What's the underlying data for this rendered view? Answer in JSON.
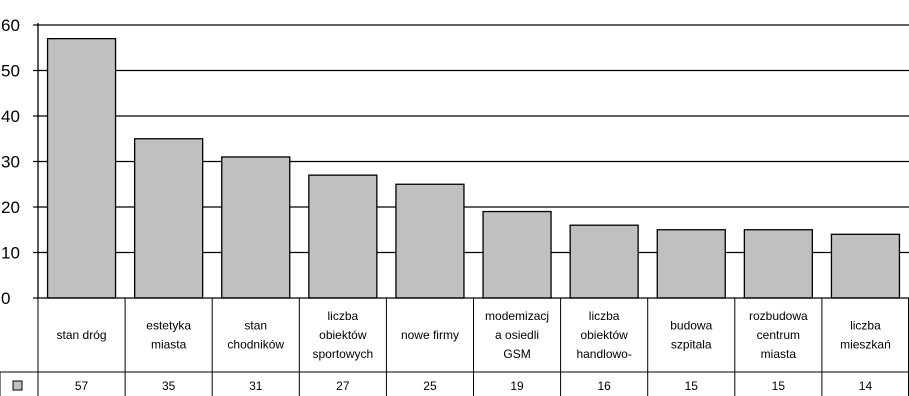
{
  "chart_data": {
    "type": "bar",
    "categories": [
      [
        "stan dróg"
      ],
      [
        "estetyka",
        "miasta"
      ],
      [
        "stan",
        "chodników"
      ],
      [
        "liczba",
        "obiektów",
        "sportowych"
      ],
      [
        "nowe firmy"
      ],
      [
        "modemizacj",
        "a osiedli",
        "GSM"
      ],
      [
        "liczba",
        "obiektów",
        "handlowo-"
      ],
      [
        "budowa",
        "szpitala"
      ],
      [
        "rozbudowa",
        "centrum",
        "miasta"
      ],
      [
        "liczba",
        "mieszkań"
      ]
    ],
    "values": [
      57,
      35,
      31,
      27,
      25,
      19,
      16,
      15,
      15,
      14
    ],
    "value_labels": [
      "57",
      "35",
      "31",
      "27",
      "25",
      "19",
      "16",
      "15",
      "15",
      "14"
    ],
    "yticks": [
      "0",
      "10",
      "20",
      "30",
      "40",
      "50",
      "60"
    ],
    "ylim": [
      0,
      60
    ],
    "grid": true,
    "bar_color": "#c0c0c0",
    "legend": "data-table-key"
  }
}
